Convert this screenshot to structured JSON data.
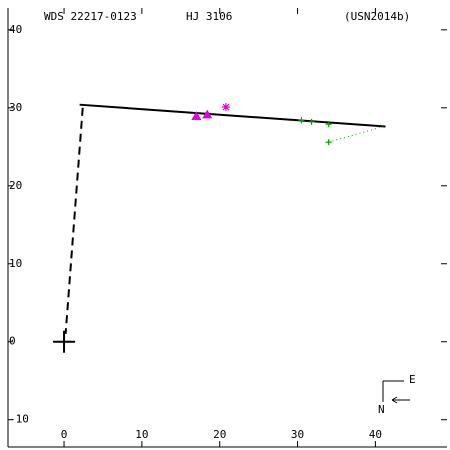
{
  "chart_data": {
    "type": "scatter",
    "texts": [
      "WDS 22217-0123",
      "HJ 3106",
      "(USN2014b)"
    ],
    "compass": {
      "east": "E",
      "north": "N"
    },
    "xlim": [
      -7.2,
      49.2
    ],
    "ylim": [
      -13.5,
      42.8
    ],
    "xticks": [
      0,
      10,
      20,
      30,
      40
    ],
    "yticks": [
      -10,
      0,
      10,
      20,
      30,
      40
    ],
    "series": [
      {
        "kind": "line",
        "style": "solid",
        "color": "#000000",
        "x": [
          2,
          41.3
        ],
        "y": [
          30.4,
          27.6
        ]
      },
      {
        "kind": "line",
        "style": "dash",
        "color": "#000000",
        "x": [
          2.4,
          0.2
        ],
        "y": [
          30,
          1
        ]
      },
      {
        "kind": "line",
        "style": "dot",
        "color": "#00a000",
        "x": [
          34,
          41
        ],
        "y": [
          25.6,
          27.6
        ]
      },
      {
        "kind": "points",
        "marker": "triangle",
        "color": "#e000e0",
        "x": [
          17,
          18.4
        ],
        "y": [
          28.9,
          29.1
        ]
      },
      {
        "kind": "points",
        "marker": "star",
        "color": "#e000e0",
        "x": [
          20.8
        ],
        "y": [
          30.1
        ]
      },
      {
        "kind": "points",
        "marker": "plus",
        "color": "#00a000",
        "x": [
          30.5,
          31.8,
          34,
          34
        ],
        "y": [
          28.4,
          28.2,
          27.9,
          25.6
        ]
      },
      {
        "kind": "points",
        "marker": "bigplus",
        "color": "#000000",
        "x": [
          0
        ],
        "y": [
          0
        ]
      }
    ]
  }
}
